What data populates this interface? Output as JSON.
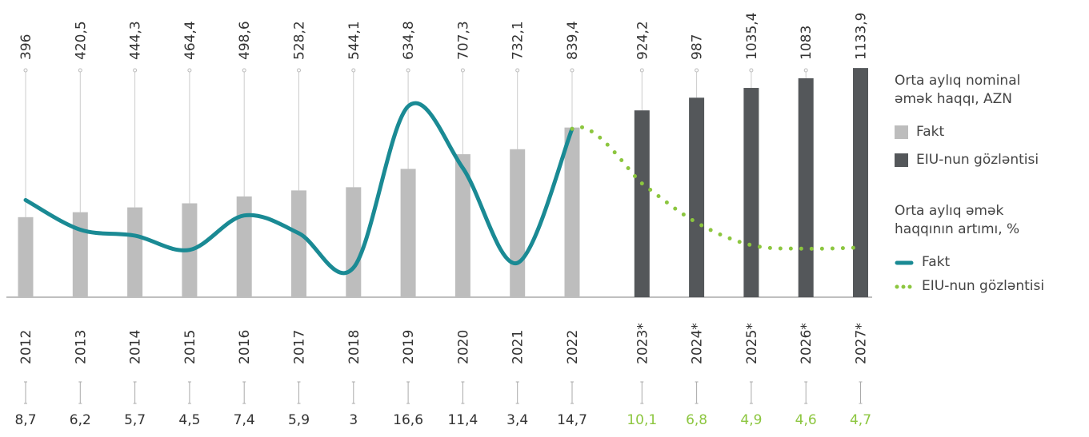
{
  "chart_data": {
    "type": "bar-line",
    "categories": [
      "2012",
      "2013",
      "2014",
      "2015",
      "2016",
      "2017",
      "2018",
      "2019",
      "2020",
      "2021",
      "2022",
      "2023*",
      "2024*",
      "2025*",
      "2026*",
      "2027*"
    ],
    "bar_legend_title": "Orta aylıq nominal əmək haqqı, AZN",
    "line_legend_title": "Orta aylıq əmək haqqının artımı, %",
    "series": [
      {
        "name": "Fakt",
        "type": "bar",
        "color": "#bdbdbd",
        "values": [
          396,
          420.5,
          444.3,
          464.4,
          498.6,
          528.2,
          544.1,
          634.8,
          707.3,
          732.1,
          839.4,
          null,
          null,
          null,
          null,
          null
        ],
        "value_labels": [
          "396",
          "420,5",
          "444,3",
          "464,4",
          "498,6",
          "528,2",
          "544,1",
          "634,8",
          "707,3",
          "732,1",
          "839,4",
          null,
          null,
          null,
          null,
          null
        ]
      },
      {
        "name": "EIU-nun gözləntisi",
        "type": "bar",
        "color": "#54575a",
        "values": [
          null,
          null,
          null,
          null,
          null,
          null,
          null,
          null,
          null,
          null,
          null,
          924.2,
          987,
          1035.4,
          1083,
          1133.9
        ],
        "value_labels": [
          null,
          null,
          null,
          null,
          null,
          null,
          null,
          null,
          null,
          null,
          null,
          "924,2",
          "987",
          "1035,4",
          "1083",
          "1133,9"
        ]
      },
      {
        "name": "Fakt",
        "type": "line",
        "color": "#1a8a94",
        "values": [
          8.7,
          6.2,
          5.7,
          4.5,
          7.4,
          5.9,
          3,
          16.6,
          11.4,
          3.4,
          14.7,
          null,
          null,
          null,
          null,
          null
        ],
        "value_labels": [
          "8,7",
          "6,2",
          "5,7",
          "4,5",
          "7,4",
          "5,9",
          "3",
          "16,6",
          "11,4",
          "3,4",
          "14,7",
          null,
          null,
          null,
          null,
          null
        ]
      },
      {
        "name": "EIU-nun gözləntisi",
        "type": "line",
        "dotted": true,
        "color": "#8cc63f",
        "values": [
          null,
          null,
          null,
          null,
          null,
          null,
          null,
          null,
          null,
          null,
          null,
          10.1,
          6.8,
          4.9,
          4.6,
          4.7
        ],
        "value_labels": [
          null,
          null,
          null,
          null,
          null,
          null,
          null,
          null,
          null,
          null,
          null,
          "10,1",
          "6,8",
          "4,9",
          "4,6",
          "4,7"
        ]
      }
    ]
  }
}
